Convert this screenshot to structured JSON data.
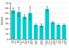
{
  "chart_data": {
    "type": "bar",
    "categories": [
      "Nat.\nlatex\n(Ans.)",
      "Nat.\nlatex\n(Card.)",
      "Neo-\nprene\n(Ans.)",
      "Neo-\nprene\n(Card.)",
      "Nitrile\n(Ans.)",
      "Nitrile\n(Card.)",
      "Polyiso-\nprene\n(Ans.)",
      "Polyiso-\nprene\n(Card.)",
      "Poly-\nureth.\n(Ans.)",
      "Poly-\nureth.\n(Card.)"
    ],
    "values": [
      55,
      52,
      43,
      50,
      27,
      26,
      58,
      32,
      27,
      27
    ],
    "errors": [
      5,
      9,
      4,
      13,
      2,
      3,
      5,
      2,
      2,
      2
    ],
    "color": "#00cccc",
    "ylabel": "N/mm",
    "ylim": [
      0,
      70
    ],
    "yticks": [
      0,
      10,
      20,
      30,
      40,
      50,
      60,
      70
    ],
    "grid": true
  }
}
